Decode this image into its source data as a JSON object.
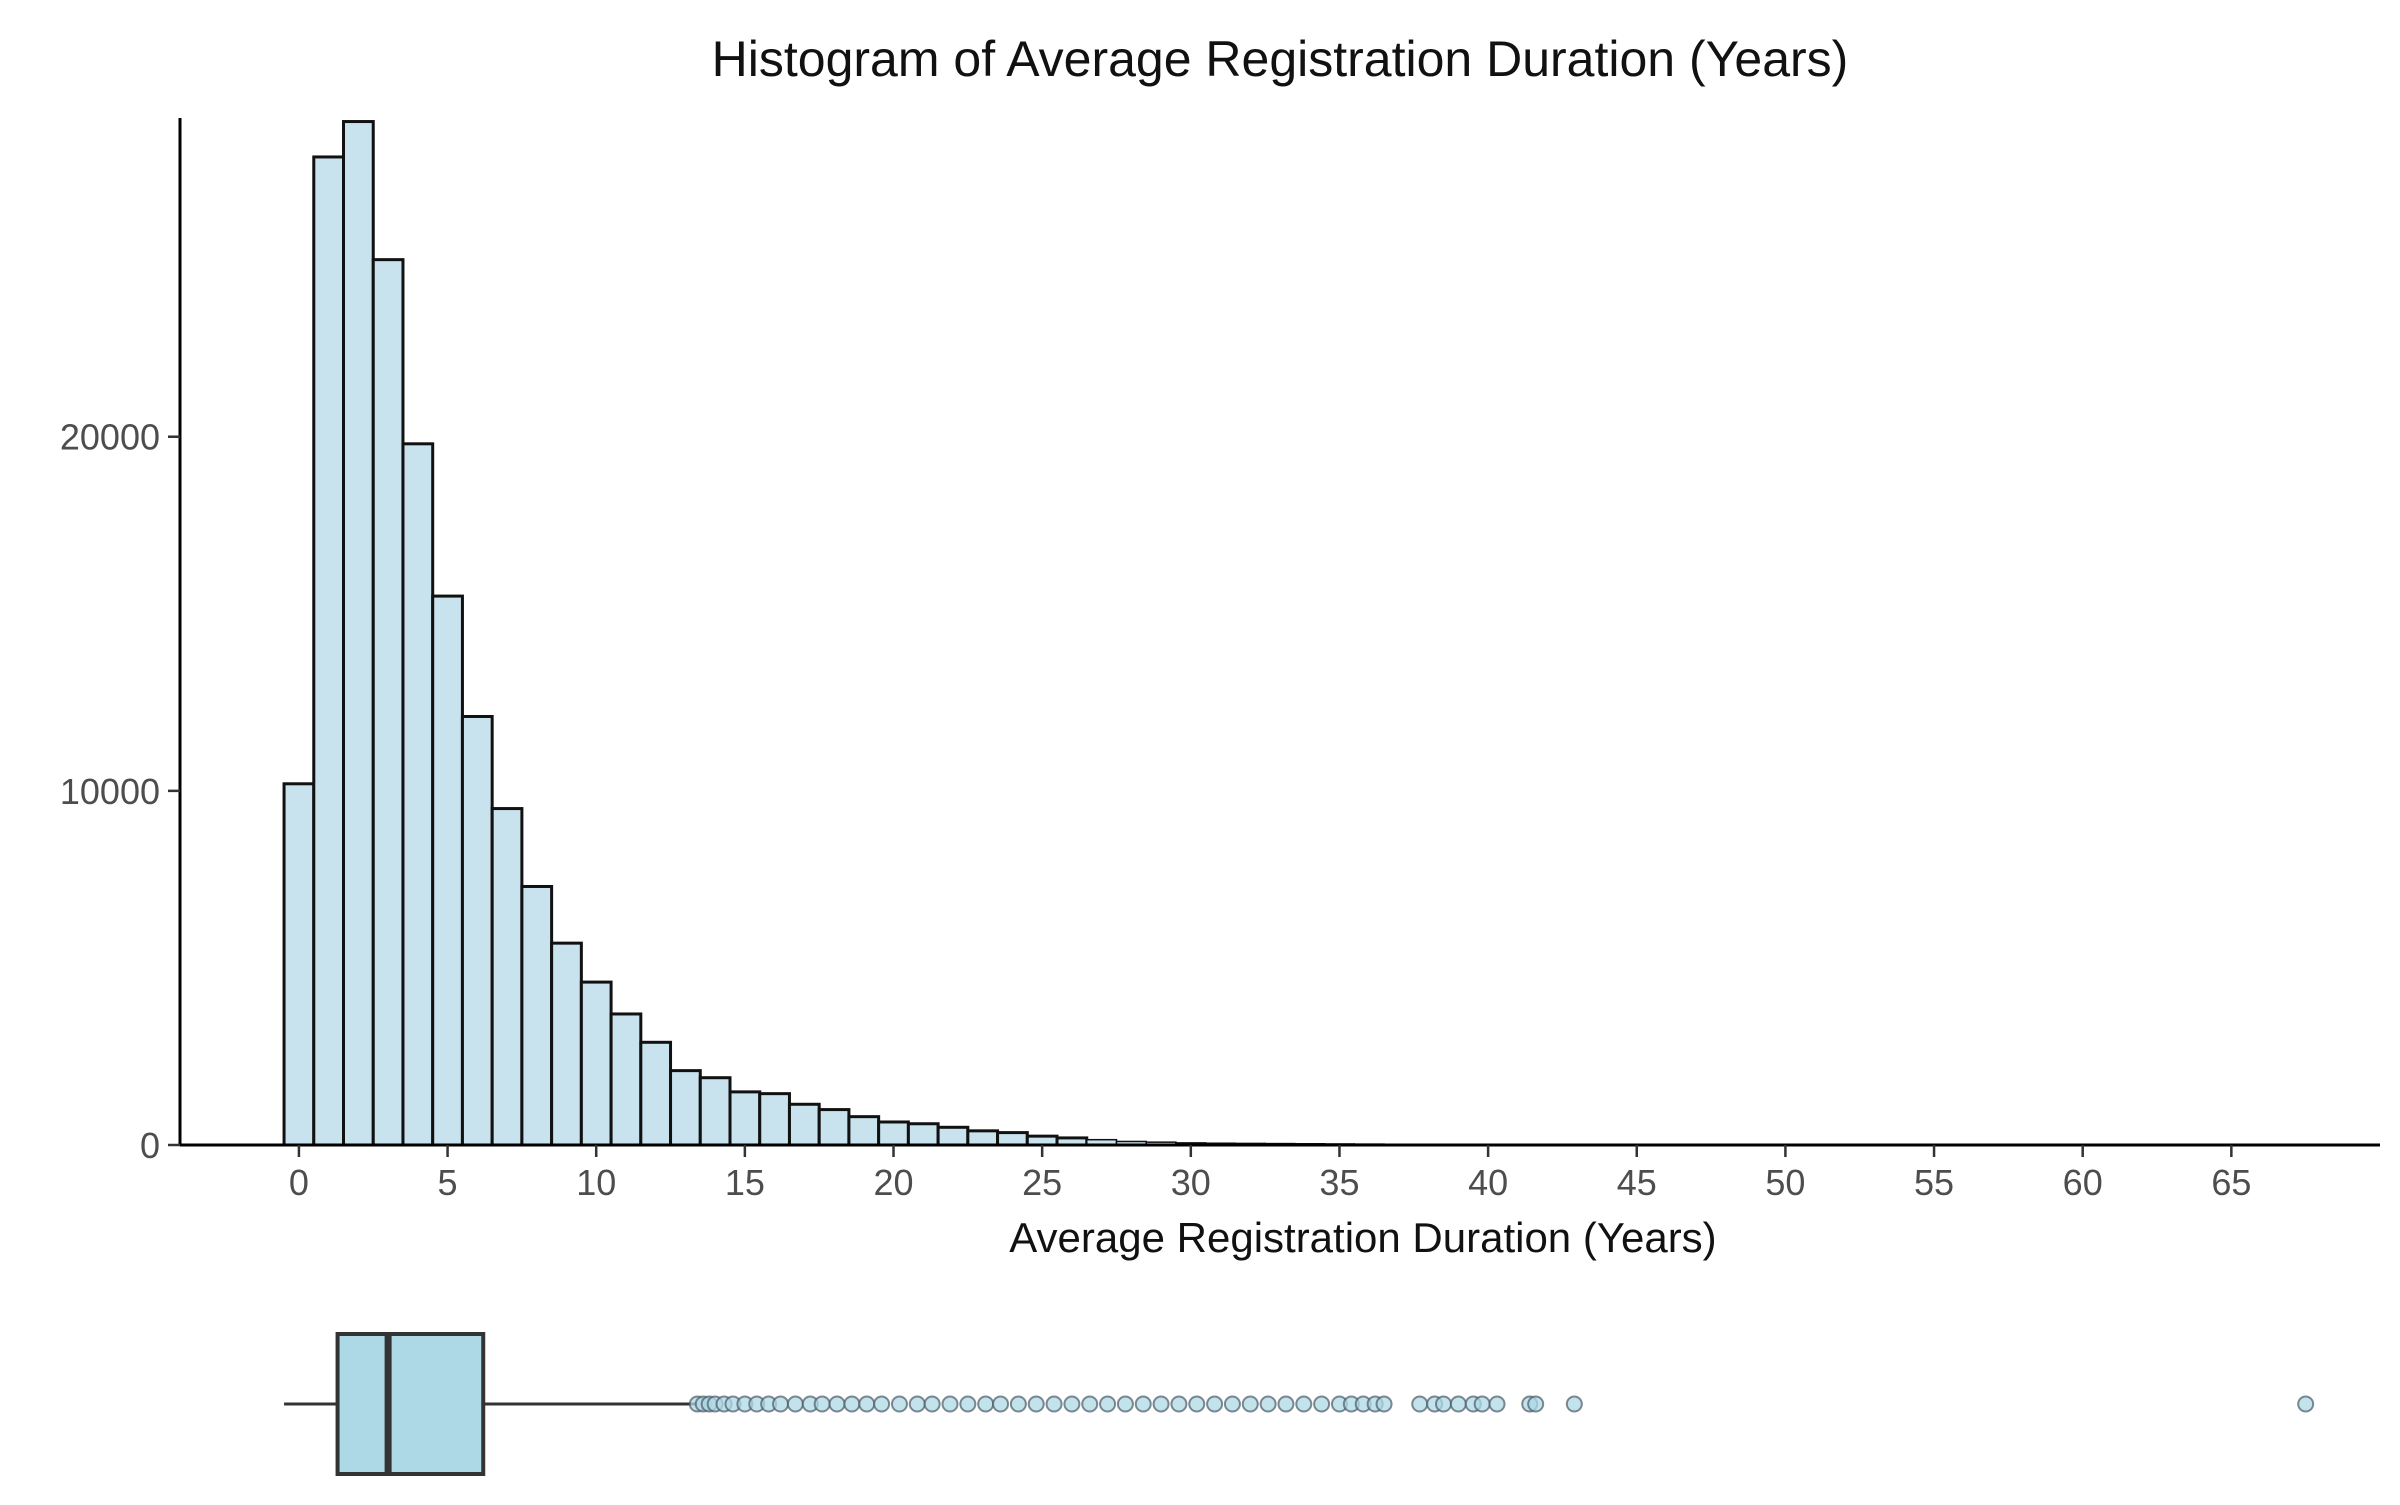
{
  "chart_data": [
    {
      "type": "bar",
      "title": "Histogram of Average Registration Duration (Years)",
      "xlabel": "Average Registration Duration (Years)",
      "ylabel": "",
      "xlim": [
        -4,
        70
      ],
      "ylim": [
        0,
        29000
      ],
      "x_ticks": [
        "0",
        "5",
        "10",
        "15",
        "20",
        "25",
        "30",
        "35",
        "40",
        "45",
        "50",
        "55",
        "60",
        "65"
      ],
      "y_ticks": [
        "0",
        "10000",
        "20000"
      ],
      "bin_width": 1,
      "bin_start": -0.5,
      "values": [
        10200,
        27900,
        28900,
        25000,
        19800,
        15500,
        12100,
        9500,
        7300,
        5700,
        4600,
        3700,
        2900,
        2100,
        1900,
        1500,
        1450,
        1150,
        1000,
        800,
        650,
        600,
        500,
        400,
        350,
        250,
        200,
        150,
        100,
        80,
        60,
        50,
        45,
        40,
        35,
        30,
        25,
        20,
        18,
        16,
        14,
        12,
        10,
        9,
        8,
        7,
        6,
        5,
        4,
        4,
        3,
        3,
        3,
        2,
        2,
        2,
        2,
        2,
        1,
        1,
        1,
        1,
        1,
        1,
        1,
        1,
        1,
        1
      ],
      "colors": {
        "fill": "#c8e3ee",
        "stroke": "#111111"
      }
    },
    {
      "type": "boxplot",
      "min": -0.5,
      "q1": 1.3,
      "median": 3.0,
      "q3": 6.2,
      "whisker_low": -0.5,
      "whisker_high": 13.4,
      "outliers": [
        13.4,
        13.6,
        13.8,
        14.0,
        14.3,
        14.6,
        15.0,
        15.4,
        15.8,
        16.2,
        16.7,
        17.2,
        17.6,
        18.1,
        18.6,
        19.1,
        19.6,
        20.2,
        20.8,
        21.3,
        21.9,
        22.5,
        23.1,
        23.6,
        24.2,
        24.8,
        25.4,
        26.0,
        26.6,
        27.2,
        27.8,
        28.4,
        29.0,
        29.6,
        30.2,
        30.8,
        31.4,
        32.0,
        32.6,
        33.2,
        33.8,
        34.4,
        35.0,
        35.4,
        35.8,
        36.2,
        36.5,
        37.7,
        38.2,
        38.5,
        39.0,
        39.5,
        39.8,
        40.3,
        41.4,
        41.6,
        42.9,
        67.5
      ],
      "colors": {
        "fill": "#add8e6",
        "stroke": "#333333",
        "outlier_fill": "#add8e6"
      }
    }
  ]
}
